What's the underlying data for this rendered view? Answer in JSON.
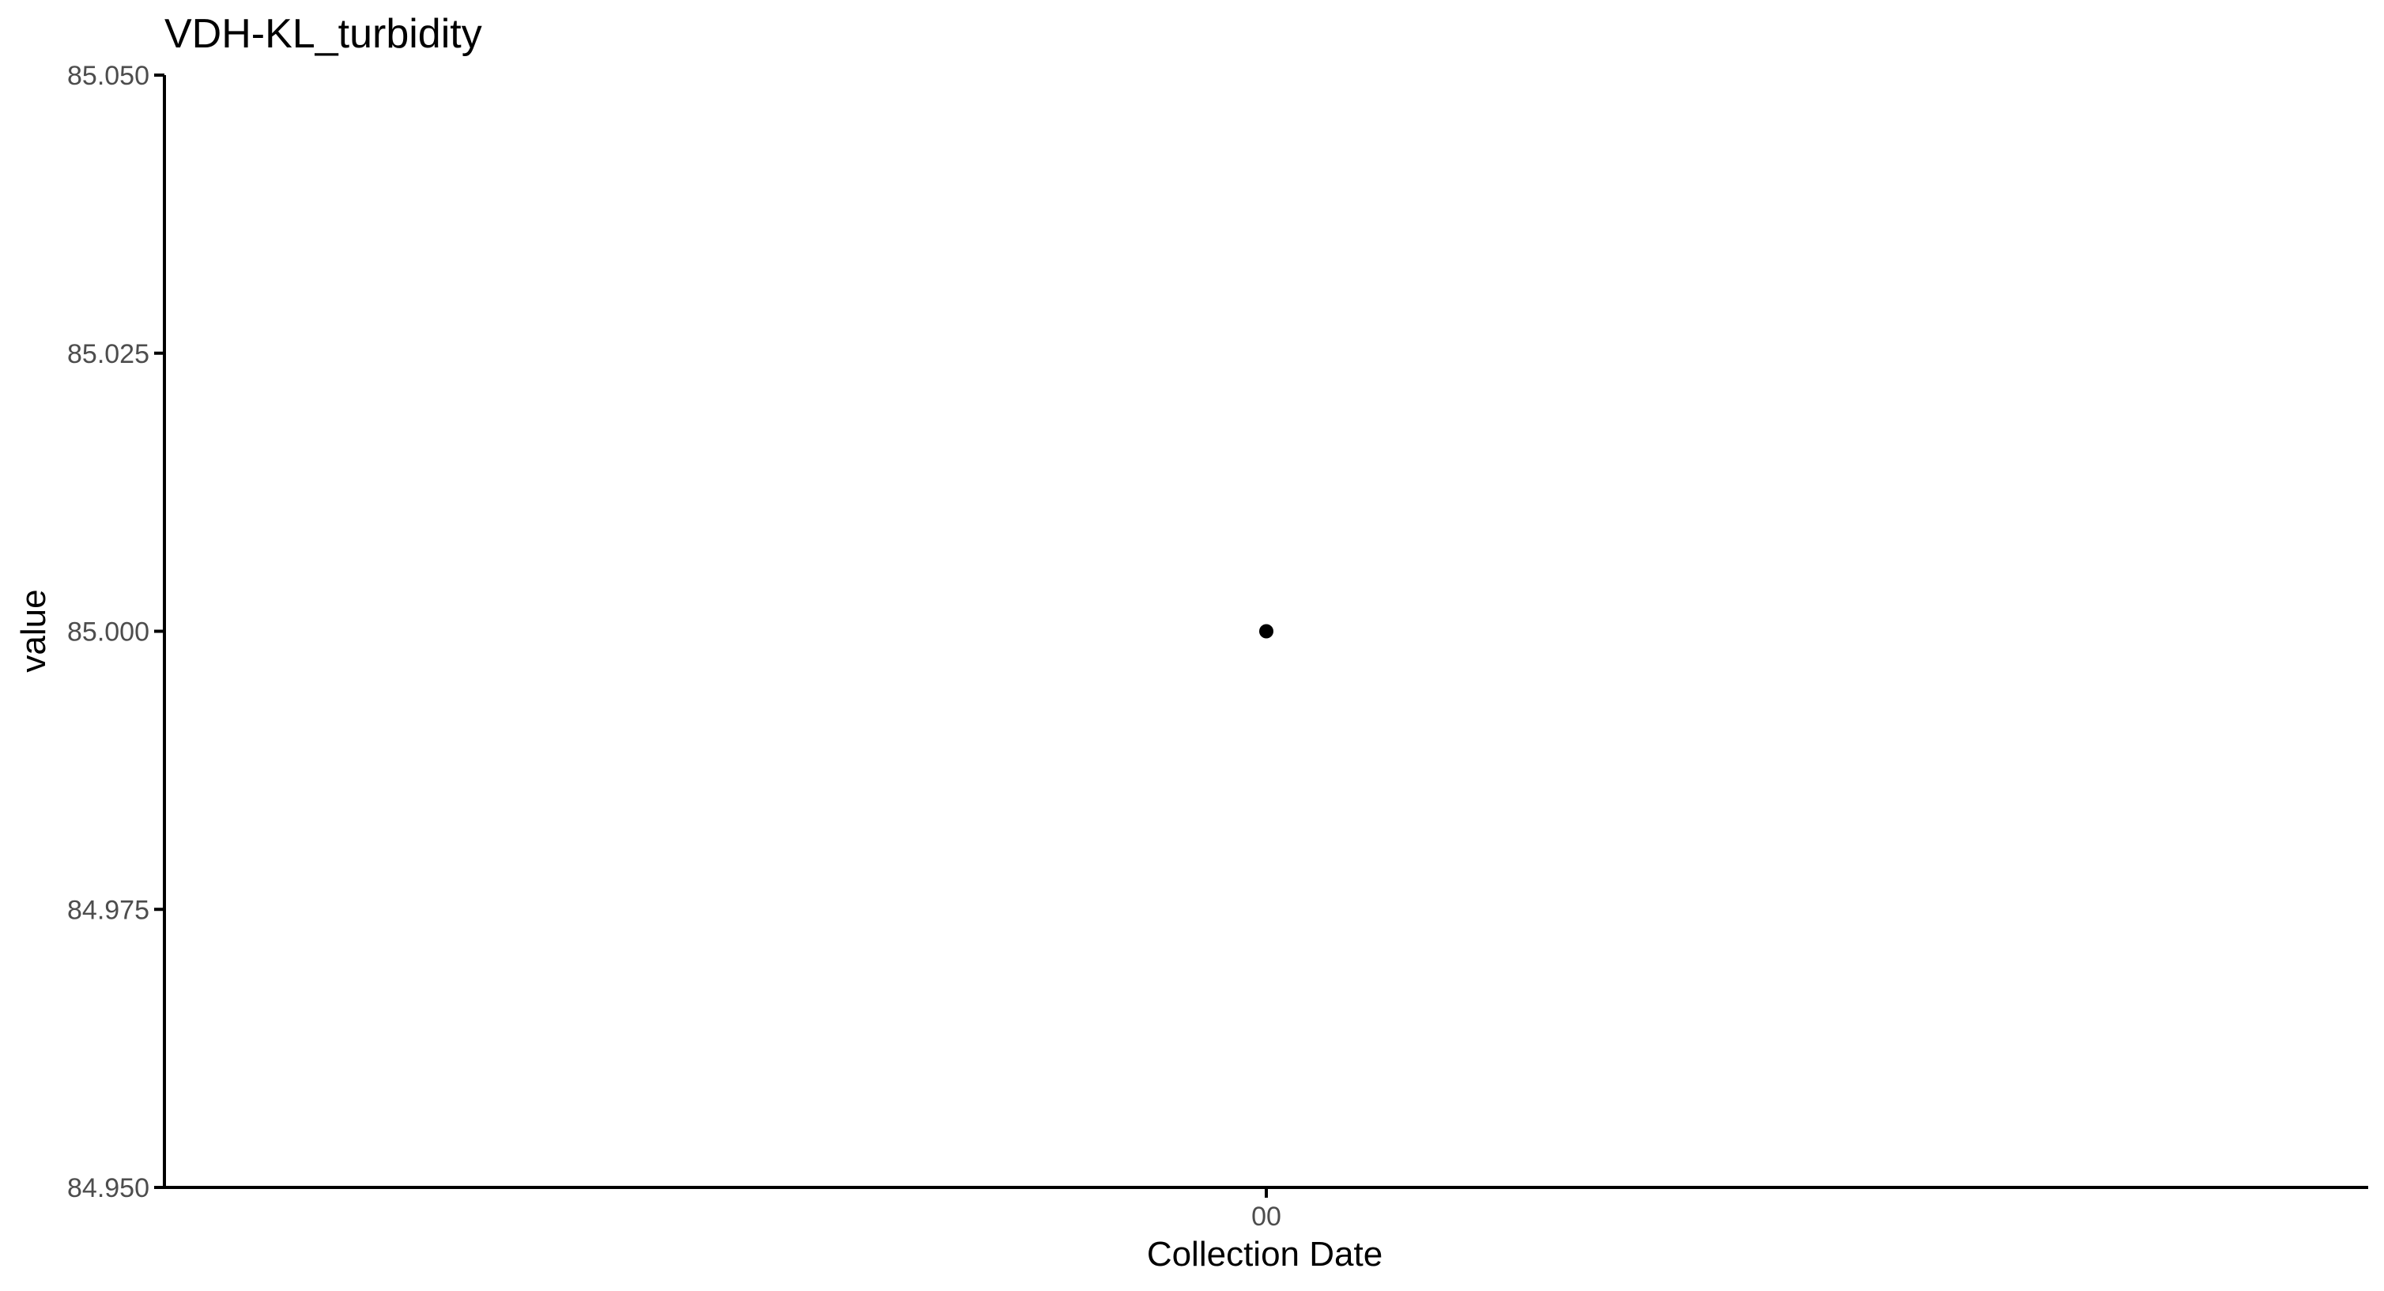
{
  "chart_data": {
    "type": "scatter",
    "title": "VDH-KL_turbidity",
    "xlabel": "Collection Date",
    "ylabel": "value",
    "x_ticks": [
      "00"
    ],
    "y_ticks": [
      "84.950",
      "84.975",
      "85.000",
      "85.025",
      "85.050"
    ],
    "ylim": [
      84.95,
      85.05
    ],
    "grid": false,
    "legend": "none",
    "points": [
      {
        "x": "00",
        "y": 85.0
      }
    ],
    "point_color": "#000000",
    "axis_color": "#000000",
    "tick_label_color": "#4d4d4d"
  }
}
